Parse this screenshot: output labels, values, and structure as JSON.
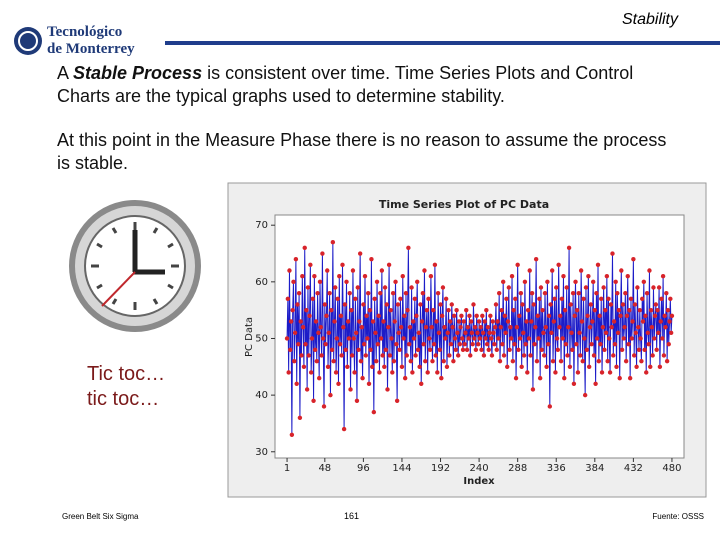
{
  "header": {
    "logo_line1": "Tecnológico",
    "logo_line2": "de Monterrey",
    "title": "Stability"
  },
  "body": {
    "p1": [
      "A ",
      "Stable Process",
      " is consistent over time.  Time Series Plots and Control Charts are the typical graphs used to determine stability."
    ],
    "p2": "At this point in the Measure Phase there is no reason to assume the process is stable."
  },
  "caption": {
    "line1": "Tic toc…",
    "line2": "tic toc…"
  },
  "footer": {
    "left": "Green Belt Six Sigma",
    "page": "161",
    "right": "Fuente: OSSS"
  },
  "chart_data": {
    "type": "line",
    "title": "Time Series Plot of PC Data",
    "x_label": "Index",
    "y_label": "PC Data",
    "xlim": [
      -14,
      495
    ],
    "xticks": [
      1,
      48,
      96,
      144,
      192,
      240,
      288,
      336,
      384,
      432,
      480
    ],
    "ylim": [
      28.9,
      71.8
    ],
    "yticks": [
      30,
      40,
      50,
      60,
      70
    ],
    "series": [
      {
        "color": "#1c1cc8",
        "marker_color": "#d8232a",
        "values": [
          50,
          57,
          44,
          62,
          48,
          53,
          33,
          55,
          60,
          46,
          51,
          64,
          42,
          56,
          49,
          58,
          36,
          53,
          47,
          61,
          52,
          45,
          66,
          49,
          55,
          41,
          59,
          47,
          54,
          63,
          44,
          50,
          57,
          39,
          61,
          48,
          53,
          46,
          58,
          51,
          43,
          60,
          52,
          47,
          65,
          50,
          38,
          56,
          49,
          54,
          62,
          45,
          51,
          58,
          40,
          55,
          48,
          67,
          46,
          53,
          59,
          44,
          50,
          57,
          42,
          61,
          49,
          54,
          47,
          63,
          52,
          34,
          56,
          48,
          60,
          45,
          53,
          50,
          58,
          41,
          55,
          47,
          62,
          50,
          44,
          57,
          51,
          39,
          59,
          48,
          53,
          65,
          46,
          52,
          43,
          56,
          49,
          61,
          47,
          54,
          50,
          58,
          42,
          55,
          48,
          64,
          45,
          53,
          37,
          57,
          51,
          46,
          60,
          49,
          54,
          44,
          58,
          50,
          62,
          47,
          53,
          45,
          59,
          48,
          56,
          41,
          52,
          63,
          47,
          55,
          50,
          44,
          58,
          46,
          53,
          60,
          49,
          39,
          56,
          51,
          48,
          57,
          52,
          45,
          61,
          50,
          54,
          43,
          58,
          47,
          55,
          66,
          49,
          52,
          46,
          59,
          44,
          53,
          50,
          57,
          47,
          54,
          60,
          48,
          51,
          45,
          56,
          42,
          53,
          58,
          49,
          62,
          46,
          52,
          55,
          44,
          57,
          50,
          48,
          61,
          52,
          46,
          55,
          49,
          63,
          47,
          53,
          44,
          58,
          51,
          48,
          56,
          43,
          54,
          59,
          46,
          52,
          50,
          57,
          45,
          51,
          55,
          47,
          53,
          49,
          56,
          52,
          46,
          54,
          50,
          48,
          55,
          51,
          47,
          53,
          49,
          52,
          54,
          50,
          48,
          53,
          49,
          51,
          55,
          48,
          52,
          50,
          54,
          47,
          53,
          51,
          49,
          56,
          50,
          52,
          48,
          54,
          51,
          49,
          53,
          50,
          52,
          48,
          54,
          51,
          47,
          53,
          50,
          55,
          49,
          52,
          48,
          51,
          54,
          50,
          47,
          53,
          51,
          49,
          52,
          56,
          48,
          53,
          50,
          58,
          46,
          52,
          55,
          49,
          60,
          47,
          54,
          51,
          57,
          45,
          53,
          59,
          48,
          52,
          50,
          61,
          46,
          55,
          49,
          57,
          43,
          52,
          63,
          48,
          54,
          50,
          58,
          45,
          56,
          51,
          47,
          60,
          49,
          53,
          44,
          55,
          50,
          62,
          47,
          53,
          58,
          41,
          56,
          49,
          52,
          64,
          46,
          54,
          50,
          57,
          43,
          59,
          48,
          55,
          51,
          47,
          58,
          52,
          45,
          60,
          49,
          54,
          38,
          56,
          51,
          62,
          46,
          53,
          57,
          44,
          59,
          50,
          48,
          63,
          52,
          54,
          46,
          57,
          50,
          61,
          43,
          55,
          49,
          59,
          47,
          52,
          66,
          45,
          56,
          51,
          48,
          58,
          42,
          54,
          60,
          49,
          55,
          44,
          58,
          51,
          47,
          62,
          53,
          46,
          57,
          50,
          40,
          59,
          48,
          54,
          61,
          45,
          52,
          56,
          49,
          53,
          60,
          47,
          55,
          42,
          58,
          50,
          63,
          46,
          54,
          49,
          57,
          44,
          52,
          59,
          48,
          55,
          51,
          61,
          46,
          57,
          50,
          44,
          56,
          52,
          65,
          47,
          53,
          49,
          60,
          45,
          58,
          51,
          55,
          43,
          54,
          62,
          48,
          56,
          50,
          52,
          58,
          46,
          54,
          61,
          49,
          55,
          43,
          57,
          50,
          53,
          64,
          47,
          56,
          51,
          45,
          59,
          52,
          48,
          55,
          50,
          46,
          57,
          53,
          60,
          48,
          54,
          44,
          58,
          51,
          49,
          62,
          45,
          55,
          52,
          47,
          59,
          50,
          54,
          56,
          48,
          55,
          51,
          59,
          45,
          53,
          57,
          50,
          61,
          47,
          54,
          52,
          58,
          46,
          55,
          49,
          53,
          57,
          51,
          54
        ]
      }
    ]
  }
}
